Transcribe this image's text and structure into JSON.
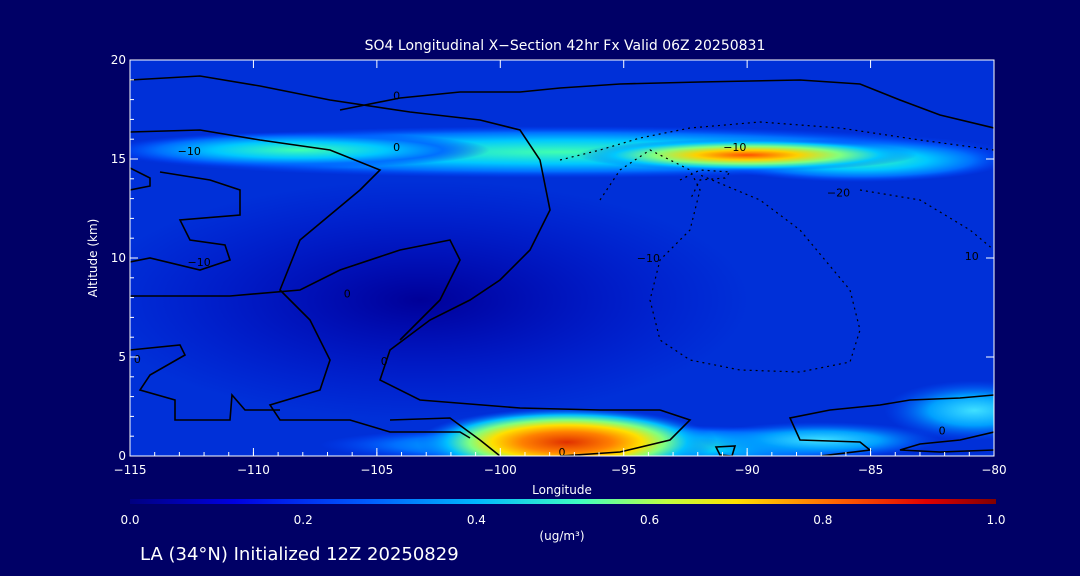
{
  "chart_data": {
    "type": "heatmap",
    "title": "SO4 Longitudinal X−Section 42hr  Fx Valid 06Z 20250831",
    "xlabel": "Longitude",
    "ylabel": "Altitude (km)",
    "xlim": [
      -115,
      -80
    ],
    "ylim": [
      0,
      20
    ],
    "x_ticks": [
      "−115",
      "−110",
      "−105",
      "−100",
      "−95",
      "−90",
      "−85",
      "−80"
    ],
    "y_ticks": [
      "0",
      "5",
      "10",
      "15",
      "20"
    ],
    "colorbar": {
      "range": [
        0.0,
        1.0
      ],
      "ticks": [
        "0.0",
        "0.2",
        "0.4",
        "0.6",
        "0.8",
        "1.0"
      ],
      "unit_label": "(ug/m³)"
    },
    "contour_labels": [
      {
        "text": "0",
        "lon": -104.2,
        "alt": 18.2
      },
      {
        "text": "0",
        "lon": -104.2,
        "alt": 15.6
      },
      {
        "text": "−10",
        "lon": -112.6,
        "alt": 15.4
      },
      {
        "text": "−10",
        "lon": -90.5,
        "alt": 15.6
      },
      {
        "text": "−20",
        "lon": -86.3,
        "alt": 13.3
      },
      {
        "text": "−10",
        "lon": -112.2,
        "alt": 9.8
      },
      {
        "text": "0",
        "lon": -106.2,
        "alt": 8.2
      },
      {
        "text": "−10",
        "lon": -94.0,
        "alt": 10.0
      },
      {
        "text": "10",
        "lon": -80.9,
        "alt": 10.1
      },
      {
        "text": "0",
        "lon": -104.7,
        "alt": 4.8
      },
      {
        "text": "0",
        "lon": -114.7,
        "alt": 4.9
      },
      {
        "text": "0",
        "lon": -82.1,
        "alt": 1.3
      },
      {
        "text": "0",
        "lon": -97.5,
        "alt": 0.2
      }
    ],
    "hotspots": [
      {
        "lon": -97.3,
        "alt": 0.7,
        "value": 0.93
      },
      {
        "lon": -90.0,
        "alt": 15.2,
        "value": 0.75
      },
      {
        "lon": -80.8,
        "alt": 2.3,
        "value": 0.38
      }
    ]
  },
  "footer": {
    "text": "LA (34°N) Initialized 12Z 20250829"
  },
  "colors": {
    "background": "#000066",
    "white": "#ffffff"
  }
}
